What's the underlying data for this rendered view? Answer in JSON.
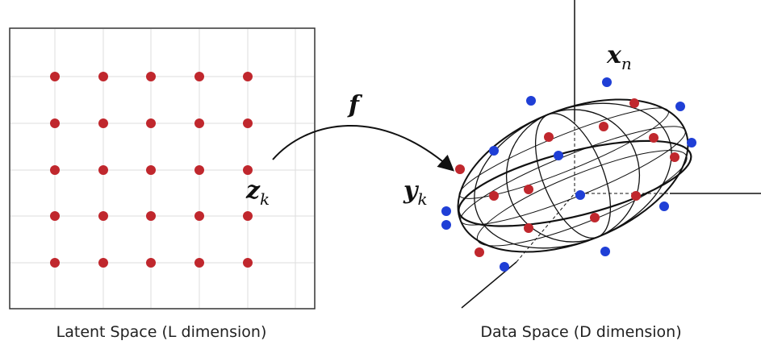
{
  "latent_space": {
    "caption": "Latent Space (L dimension)",
    "point_label": {
      "base": "z",
      "sub": "k"
    }
  },
  "mapping": {
    "label": "f"
  },
  "data_space": {
    "caption": "Data Space (D dimension)",
    "model_point_label": {
      "base": "y",
      "sub": "k"
    },
    "data_point_label": {
      "base": "x",
      "sub": "n"
    }
  }
}
